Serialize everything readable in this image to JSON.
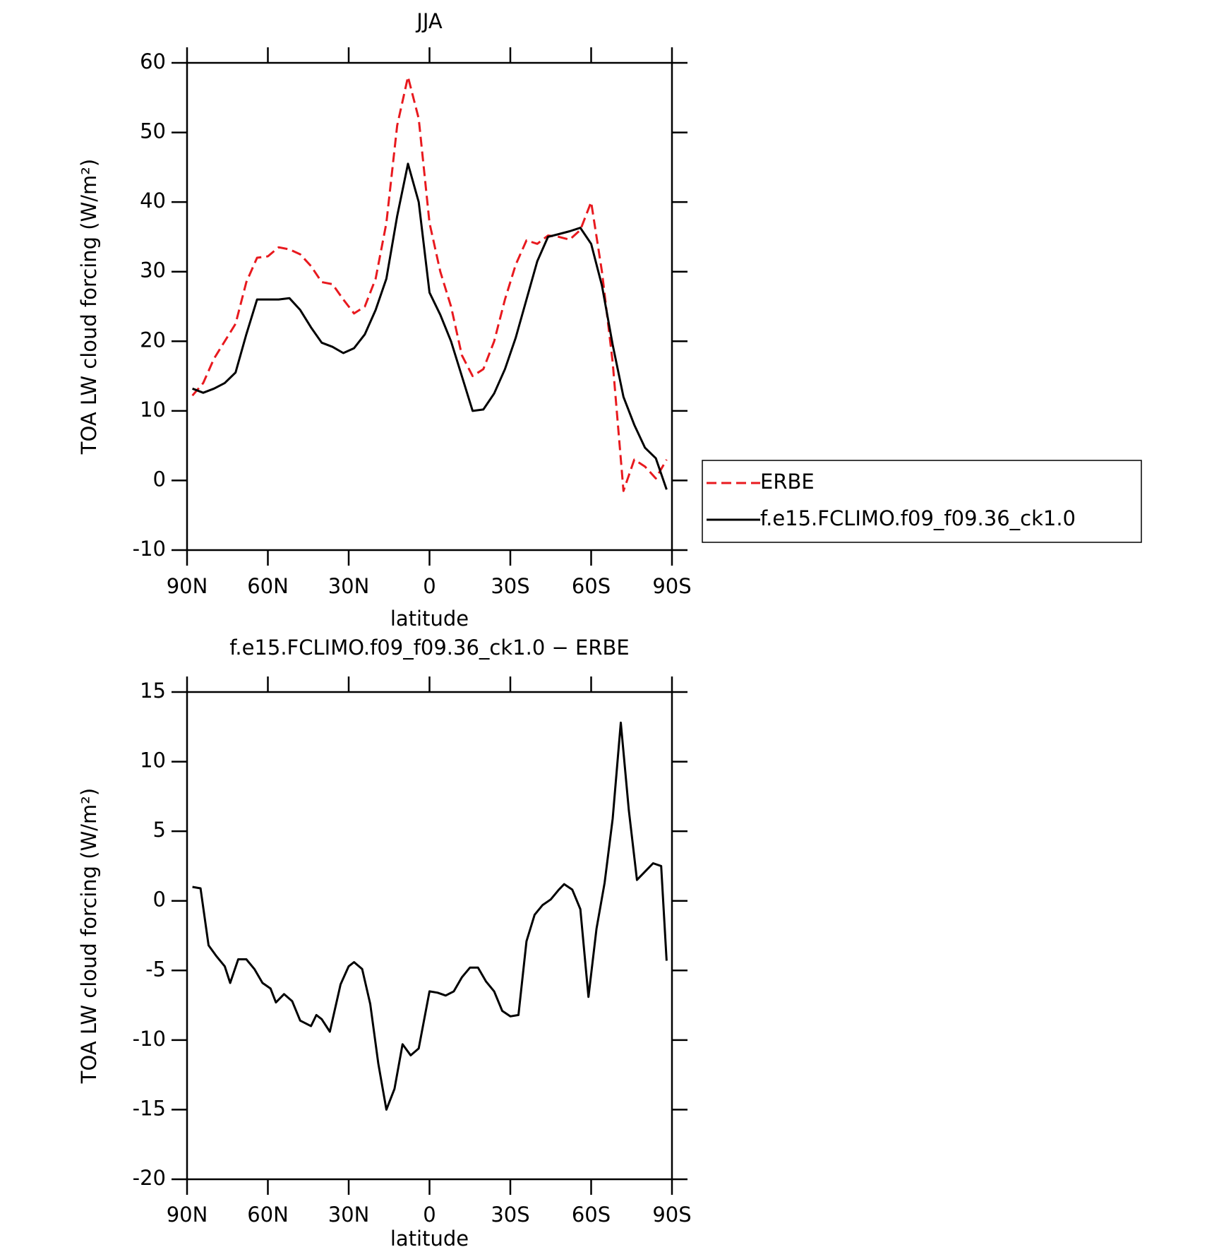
{
  "chart_data": [
    {
      "type": "line",
      "title": "JJA",
      "xlabel": "latitude",
      "ylabel": "TOA LW cloud forcing (W/m²)",
      "x": [
        88,
        84,
        80,
        76,
        72,
        68,
        64,
        60,
        56,
        52,
        48,
        44,
        40,
        36,
        32,
        28,
        24,
        20,
        16,
        12,
        8,
        4,
        0,
        -4,
        -8,
        -12,
        -16,
        -20,
        -24,
        -28,
        -32,
        -36,
        -40,
        -44,
        -48,
        -52,
        -56,
        -60,
        -64,
        -68,
        -72,
        -76,
        -80,
        -84,
        -88
      ],
      "series": [
        {
          "name": "ERBE",
          "color": "#e8191e",
          "linestyle": "dashed",
          "values": [
            12.2,
            14,
            17.5,
            20,
            22.5,
            28.5,
            32,
            32.2,
            33.5,
            33.2,
            32.5,
            30.8,
            28.5,
            28.2,
            26,
            24,
            25,
            29,
            37,
            51,
            58,
            52,
            37,
            30,
            25,
            18,
            15,
            16,
            20,
            26,
            31,
            34.5,
            34,
            35.2,
            35,
            34.6,
            36,
            40,
            30,
            17,
            -1.5,
            3,
            2,
            0.3,
            3
          ]
        },
        {
          "name": "f.e15.FCLIMO.f09_f09.36_ck1.0",
          "color": "#000000",
          "linestyle": "solid",
          "values": [
            13.2,
            12.6,
            13.2,
            14,
            15.5,
            21,
            26,
            26,
            26,
            26.2,
            24.5,
            22,
            19.8,
            19.2,
            18.3,
            19,
            21,
            24.5,
            29,
            38,
            45.5,
            40,
            27,
            23.8,
            20,
            15,
            10,
            10.2,
            12.5,
            16,
            20.5,
            26,
            31.5,
            35,
            35.4,
            35.8,
            36.3,
            34,
            28,
            19.5,
            12,
            8,
            4.7,
            3.2,
            -1.3
          ]
        }
      ],
      "xlim": [
        90,
        -90
      ],
      "xticks": [
        {
          "value": 90,
          "label": "90N"
        },
        {
          "value": 60,
          "label": "60N"
        },
        {
          "value": 30,
          "label": "30N"
        },
        0,
        {
          "value": -30,
          "label": "30S"
        },
        {
          "value": -60,
          "label": "60S"
        },
        {
          "value": -90,
          "label": "90S"
        }
      ],
      "ylim": [
        -10,
        60
      ],
      "yticks": [
        -10,
        0,
        10,
        20,
        30,
        40,
        50,
        60
      ],
      "legend": "right"
    },
    {
      "type": "line",
      "title": "f.e15.FCLIMO.f09_f09.36_ck1.0 − ERBE",
      "xlabel": "latitude",
      "ylabel": "TOA LW cloud forcing (W/m²)",
      "x": [
        88,
        85,
        82,
        79,
        76,
        74,
        71,
        68,
        65,
        62,
        59,
        57,
        54,
        51,
        48,
        44,
        42,
        40,
        37,
        33,
        30,
        28,
        25,
        22,
        19,
        16,
        13,
        10,
        7,
        4,
        0,
        -3,
        -6,
        -9,
        -12,
        -15,
        -18,
        -21,
        -24,
        -27,
        -30,
        -33,
        -36,
        -39,
        -42,
        -45,
        -48,
        -50,
        -53,
        -56,
        -59,
        -62,
        -65,
        -68,
        -71,
        -74,
        -77,
        -80,
        -83,
        -86,
        -88
      ],
      "series": [
        {
          "color": "#000000",
          "linestyle": "solid",
          "values": [
            1,
            0.9,
            -3.2,
            -4,
            -4.7,
            -5.9,
            -4.2,
            -4.2,
            -4.9,
            -5.9,
            -6.3,
            -7.3,
            -6.7,
            -7.2,
            -8.6,
            -9,
            -8.2,
            -8.5,
            -9.4,
            -6,
            -4.7,
            -4.4,
            -4.9,
            -7.4,
            -11.7,
            -15,
            -13.5,
            -10.3,
            -11.1,
            -10.6,
            -6.5,
            -6.6,
            -6.8,
            -6.5,
            -5.5,
            -4.8,
            -4.8,
            -5.8,
            -6.5,
            -7.9,
            -8.3,
            -8.2,
            -2.9,
            -1,
            -0.3,
            0.1,
            0.8,
            1.2,
            0.8,
            -0.6,
            -6.9,
            -2,
            1.3,
            5.9,
            12.8,
            6.5,
            1.5,
            2.1,
            2.7,
            2.5,
            -4.3
          ]
        }
      ],
      "xlim": [
        90,
        -90
      ],
      "xticks": [
        {
          "value": 90,
          "label": "90N"
        },
        {
          "value": 60,
          "label": "60N"
        },
        {
          "value": 30,
          "label": "30N"
        },
        0,
        {
          "value": -30,
          "label": "30S"
        },
        {
          "value": -60,
          "label": "60S"
        },
        {
          "value": -90,
          "label": "90S"
        }
      ],
      "ylim": [
        -20,
        15
      ],
      "yticks": [
        -20,
        -15,
        -10,
        -5,
        0,
        5,
        10,
        15
      ]
    }
  ]
}
